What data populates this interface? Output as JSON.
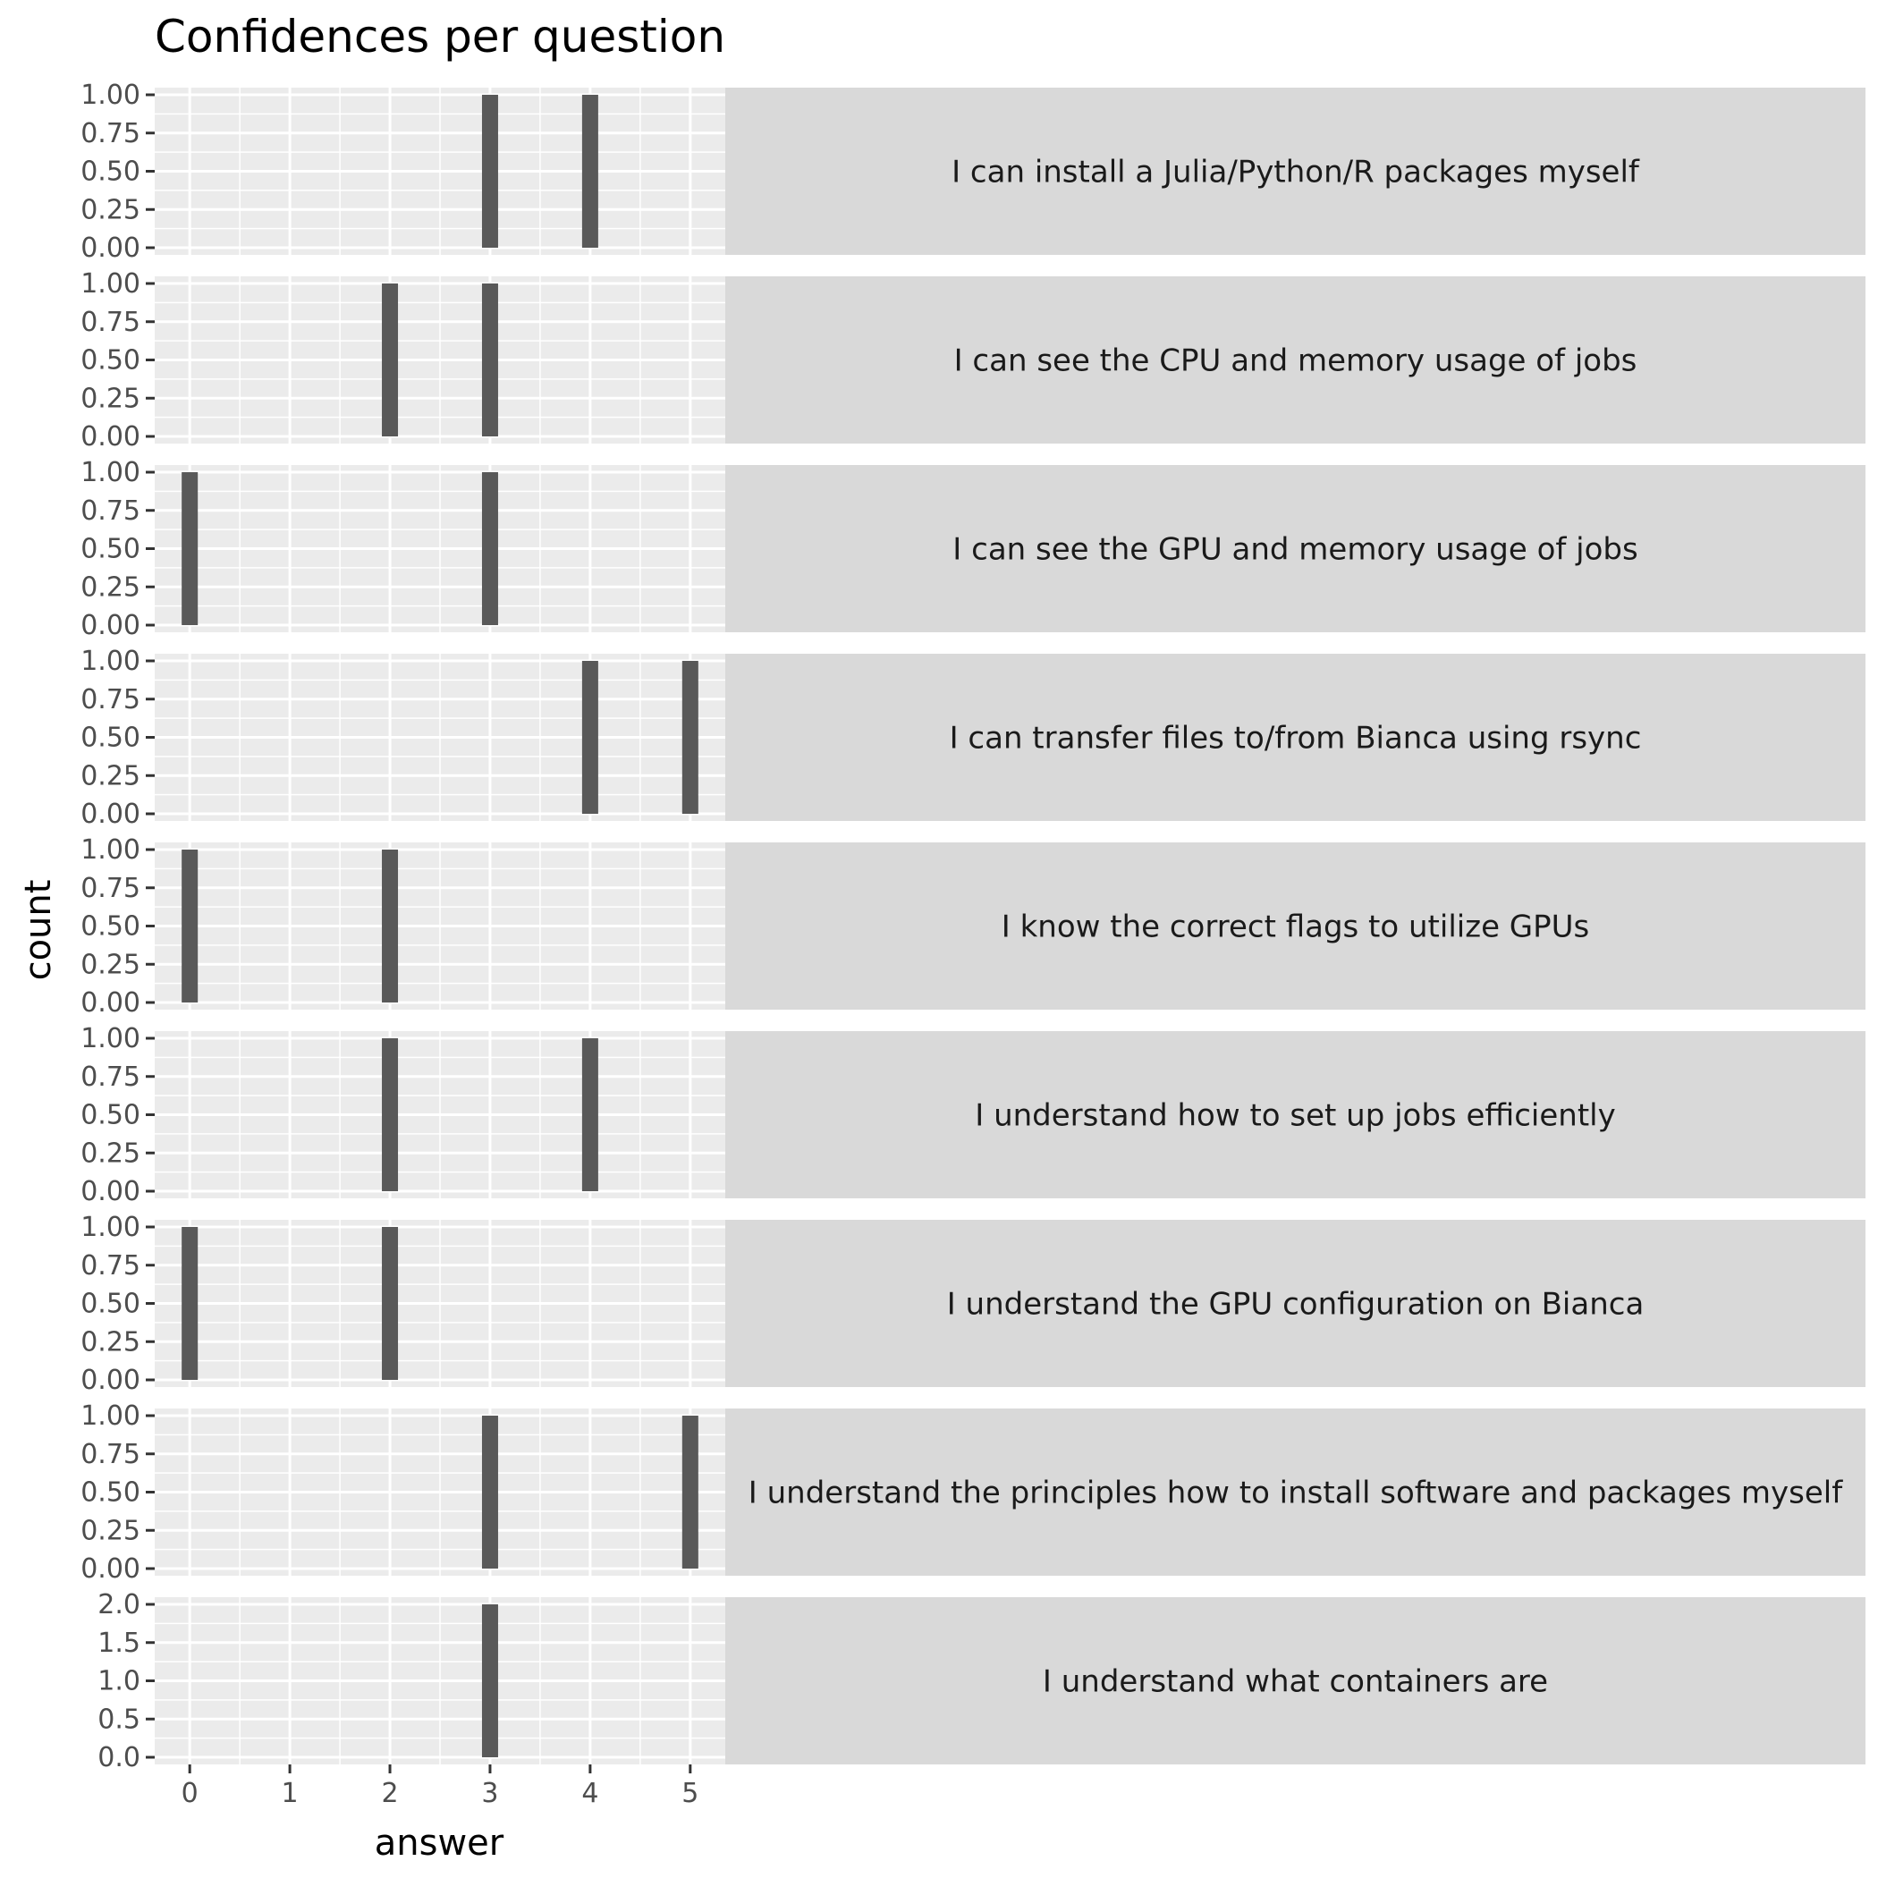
{
  "chart_data": {
    "type": "bar",
    "title": "Confidences per question",
    "xlabel": "answer",
    "ylabel": "count",
    "x_ticks": [
      0,
      1,
      2,
      3,
      4,
      5
    ],
    "xlim": [
      -0.35,
      5.35
    ],
    "grid": true,
    "facets": [
      {
        "label": "I can install a Julia/Python/R packages myself",
        "ylim": [
          0,
          1
        ],
        "y_ticks": [
          "0.00",
          "0.25",
          "0.50",
          "0.75",
          "1.00"
        ],
        "bars": [
          {
            "x": 3,
            "count": 1
          },
          {
            "x": 4,
            "count": 1
          }
        ]
      },
      {
        "label": "I can see the CPU and memory usage of jobs",
        "ylim": [
          0,
          1
        ],
        "y_ticks": [
          "0.00",
          "0.25",
          "0.50",
          "0.75",
          "1.00"
        ],
        "bars": [
          {
            "x": 2,
            "count": 1
          },
          {
            "x": 3,
            "count": 1
          }
        ]
      },
      {
        "label": "I can see the GPU and memory usage of jobs",
        "ylim": [
          0,
          1
        ],
        "y_ticks": [
          "0.00",
          "0.25",
          "0.50",
          "0.75",
          "1.00"
        ],
        "bars": [
          {
            "x": 0,
            "count": 1
          },
          {
            "x": 3,
            "count": 1
          }
        ]
      },
      {
        "label": "I can transfer files to/from Bianca using rsync",
        "ylim": [
          0,
          1
        ],
        "y_ticks": [
          "0.00",
          "0.25",
          "0.50",
          "0.75",
          "1.00"
        ],
        "bars": [
          {
            "x": 4,
            "count": 1
          },
          {
            "x": 5,
            "count": 1
          }
        ]
      },
      {
        "label": "I know the correct flags to utilize GPUs",
        "ylim": [
          0,
          1
        ],
        "y_ticks": [
          "0.00",
          "0.25",
          "0.50",
          "0.75",
          "1.00"
        ],
        "bars": [
          {
            "x": 0,
            "count": 1
          },
          {
            "x": 2,
            "count": 1
          }
        ]
      },
      {
        "label": "I understand how to set up jobs efficiently",
        "ylim": [
          0,
          1
        ],
        "y_ticks": [
          "0.00",
          "0.25",
          "0.50",
          "0.75",
          "1.00"
        ],
        "bars": [
          {
            "x": 2,
            "count": 1
          },
          {
            "x": 4,
            "count": 1
          }
        ]
      },
      {
        "label": "I understand the GPU configuration on Bianca",
        "ylim": [
          0,
          1
        ],
        "y_ticks": [
          "0.00",
          "0.25",
          "0.50",
          "0.75",
          "1.00"
        ],
        "bars": [
          {
            "x": 0,
            "count": 1
          },
          {
            "x": 2,
            "count": 1
          }
        ]
      },
      {
        "label": "I understand the principles how to install software and packages myself",
        "ylim": [
          0,
          1
        ],
        "y_ticks": [
          "0.00",
          "0.25",
          "0.50",
          "0.75",
          "1.00"
        ],
        "bars": [
          {
            "x": 3,
            "count": 1
          },
          {
            "x": 5,
            "count": 1
          }
        ]
      },
      {
        "label": "I understand what containers are",
        "ylim": [
          0,
          2
        ],
        "y_ticks": [
          "0.0",
          "0.5",
          "1.0",
          "1.5",
          "2.0"
        ],
        "bars": [
          {
            "x": 3,
            "count": 2
          }
        ]
      }
    ],
    "colors": {
      "bar": "#595959",
      "panel_bg": "#ebebeb",
      "strip_bg": "#d9d9d9",
      "grid": "#ffffff"
    }
  }
}
